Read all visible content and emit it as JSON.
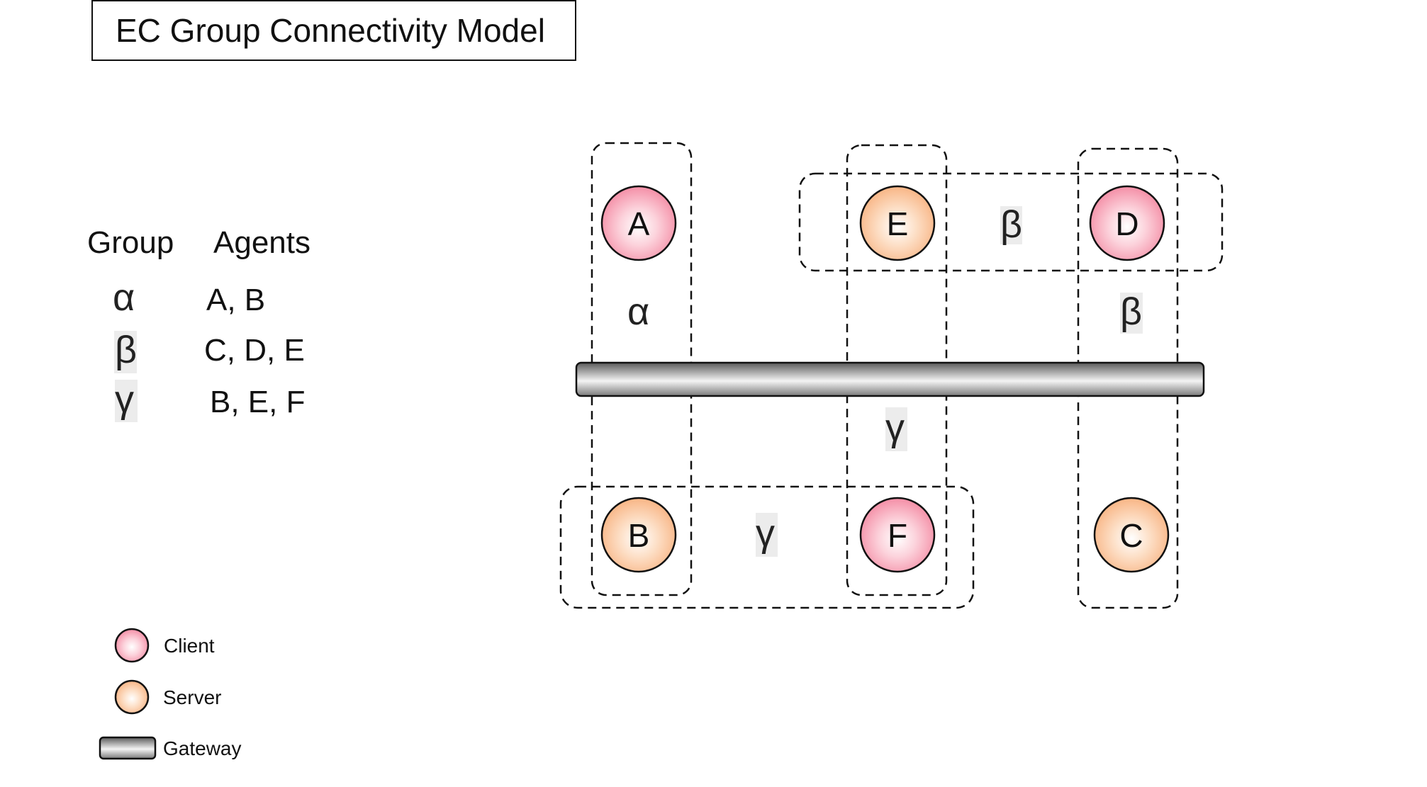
{
  "title": "EC Group Connectivity  Model",
  "table": {
    "header_group": "Group",
    "header_agents": "Agents",
    "rows": [
      {
        "group": "α",
        "agents": "A, B"
      },
      {
        "group": "β",
        "agents": "C, D, E"
      },
      {
        "group": "γ",
        "agents": "B, E, F"
      }
    ]
  },
  "nodes": [
    {
      "id": "A",
      "label": "A",
      "role": "client"
    },
    {
      "id": "E",
      "label": "E",
      "role": "server"
    },
    {
      "id": "D",
      "label": "D",
      "role": "client"
    },
    {
      "id": "B",
      "label": "B",
      "role": "server"
    },
    {
      "id": "F",
      "label": "F",
      "role": "client"
    },
    {
      "id": "C",
      "label": "C",
      "role": "server"
    }
  ],
  "group_labels": {
    "alpha_vertical": "α",
    "beta_horizontal": "β",
    "beta_vertical": "β",
    "gamma_vertical": "γ",
    "gamma_horizontal": "γ"
  },
  "legend": {
    "client": "Client",
    "server": "Server",
    "gateway": "Gateway"
  },
  "colors": {
    "client_fill": "#f7a3b5",
    "server_fill": "#fbc79c",
    "gateway_dark": "#555555",
    "gateway_light": "#f2f2f2",
    "symbol_highlight": "#ececec"
  }
}
